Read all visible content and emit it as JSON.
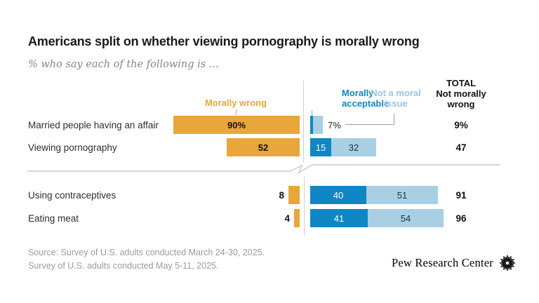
{
  "header": {
    "title": "Americans split on whether viewing pornography is morally wrong",
    "subtitle": "% who say each of the following is ..."
  },
  "legend": {
    "morally_wrong": "Morally wrong",
    "morally_acceptable": "Morally acceptable",
    "not_a_moral_issue": "Not a moral issue",
    "total_line1": "TOTAL",
    "total_line2": "Not morally wrong"
  },
  "colors": {
    "orange": "#E9A63B",
    "blue_dark": "#0E87C4",
    "blue_light": "#A9CFE5",
    "blue_light_text": "#9CC4DE",
    "total_text": "#111111"
  },
  "chart_data": {
    "type": "bar",
    "variant": "horizontal-diverging-stacked",
    "title": "Americans split on whether viewing pornography is morally wrong",
    "subtitle": "% who say each of the following is ...",
    "units": "% of U.S. adults",
    "legend_position": "top",
    "axis_break_after_row": 2,
    "categories": [
      "Married people having an affair",
      "Viewing pornography",
      "Using contraceptives",
      "Eating meat"
    ],
    "series": [
      {
        "name": "Morally wrong",
        "color": "#E9A63B",
        "values": [
          90,
          52,
          8,
          4
        ]
      },
      {
        "name": "Morally acceptable",
        "color": "#0E87C4",
        "values": [
          2,
          15,
          40,
          41
        ]
      },
      {
        "name": "Not a moral issue",
        "color": "#A9CFE5",
        "values": [
          7,
          32,
          51,
          54
        ]
      },
      {
        "name": "TOTAL Not morally wrong",
        "color": "#111111",
        "values": [
          9,
          47,
          91,
          96
        ]
      }
    ],
    "rows": [
      {
        "label": "Married people having an affair",
        "wrong": 90,
        "wrong_text": "90%",
        "wrong_text_pos": "inside",
        "acc": 2,
        "acc_text": "",
        "nmi": 7,
        "nmi_text": "",
        "callout": "7%",
        "total": "9%"
      },
      {
        "label": "Viewing pornography",
        "wrong": 52,
        "wrong_text": "52",
        "wrong_text_pos": "inside",
        "acc": 15,
        "acc_text": "15",
        "nmi": 32,
        "nmi_text": "32",
        "callout": "",
        "total": "47"
      },
      {
        "label": "Using contraceptives",
        "wrong": 8,
        "wrong_text": "8",
        "wrong_text_pos": "outside",
        "acc": 40,
        "acc_text": "40",
        "nmi": 51,
        "nmi_text": "51",
        "callout": "",
        "total": "91"
      },
      {
        "label": "Eating meat",
        "wrong": 4,
        "wrong_text": "4",
        "wrong_text_pos": "outside",
        "acc": 41,
        "acc_text": "41",
        "nmi": 54,
        "nmi_text": "54",
        "callout": "",
        "total": "96"
      }
    ]
  },
  "footer": {
    "source_line1": "Source: Survey of U.S. adults conducted March 24-30, 2025.",
    "source_line2": "Survey of U.S. adults conducted May 5-11, 2025.",
    "brand": "Pew Research Center"
  }
}
